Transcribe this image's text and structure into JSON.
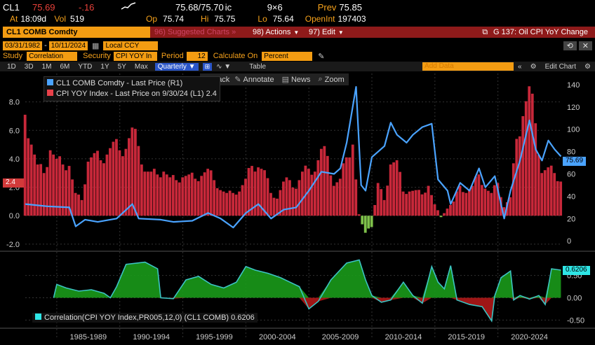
{
  "quote": {
    "ticker": "CL1",
    "last": "75.69",
    "change": "-.16",
    "bid_ask": "75.68/75.70",
    "bid_ask_suffix": "ic",
    "size": "9×6",
    "prev_label": "Prev",
    "prev": "75.85",
    "at_label": "At",
    "time": "18:09d",
    "vol_label": "Vol",
    "vol": "519",
    "op_label": "Op",
    "op": "75.74",
    "hi_label": "Hi",
    "hi": "75.75",
    "lo_label": "Lo",
    "lo": "75.64",
    "oi_label": "OpenInt",
    "oi": "197403"
  },
  "toolbar": {
    "security": "CL1 COMB Comdty",
    "suggested": "96) Suggested Charts »",
    "actions": "98) Actions",
    "edit": "97) Edit",
    "title": "G 137: Oil CPI YoY Change"
  },
  "params": {
    "start": "03/31/1982",
    "end": "10/11/2024",
    "currency": "Local CCY",
    "study_label": "Study",
    "study": "Correlation",
    "security_label": "Security",
    "security": "CPI YOY In",
    "period_label": "Period",
    "period": "12",
    "calc_label": "Calculate On",
    "calc": "Percent"
  },
  "ranges": [
    "1D",
    "3D",
    "1M",
    "6M",
    "YTD",
    "1Y",
    "5Y",
    "Max"
  ],
  "freq": "Quarterly",
  "tools": {
    "table": "Table",
    "track": "Track",
    "annotate": "Annotate",
    "news": "News",
    "zoom": "Zoom",
    "add_data": "Add Data",
    "edit_chart": "Edit Chart"
  },
  "legend": {
    "oil": "CL1 COMB Comdty - Last Price (R1)",
    "cpi": "CPI YOY Index - Last Price on 9/30/24 (L1) 2.4",
    "corr": "Correlation(CPI YOY Index,PR005,12,0) (CL1 COMB) 0.6206"
  },
  "badges": {
    "cpi": "2.4",
    "oil": "75.69",
    "corr": "0.6206"
  },
  "colors": {
    "cpi_bars": "#c8283a",
    "oil_line": "#4aa3ff",
    "corr_fill": "#1a9a1a",
    "corr_neg": "#b01818",
    "accent": "#f39c12"
  },
  "chart_data": [
    {
      "type": "bar+line",
      "x_range": [
        1982.25,
        2024.78
      ],
      "left_axis": {
        "series": "CPI YOY Index",
        "ylim": [
          -2.4,
          10.0
        ],
        "ticks": [
          "8.0",
          "6.0",
          "4.0",
          "2.0",
          "0.0",
          "-2.0"
        ]
      },
      "right_axis": {
        "series": "CL1 COMB Comdty",
        "ylim": [
          -8,
          150
        ],
        "ticks": [
          "140",
          "120",
          "100",
          "80",
          "60",
          "40",
          "20",
          "0"
        ]
      },
      "cpi_points": [
        [
          1982.25,
          7.1
        ],
        [
          1982.75,
          5.0
        ],
        [
          1983.25,
          3.6
        ],
        [
          1983.75,
          3.0
        ],
        [
          1984.25,
          4.6
        ],
        [
          1984.75,
          4.0
        ],
        [
          1985.25,
          3.6
        ],
        [
          1985.75,
          3.5
        ],
        [
          1986.25,
          1.6
        ],
        [
          1986.75,
          1.1
        ],
        [
          1987.25,
          3.8
        ],
        [
          1987.75,
          4.4
        ],
        [
          1988.25,
          3.9
        ],
        [
          1988.75,
          4.3
        ],
        [
          1989.25,
          5.2
        ],
        [
          1989.75,
          4.6
        ],
        [
          1990.25,
          4.7
        ],
        [
          1990.75,
          6.2
        ],
        [
          1991.25,
          4.9
        ],
        [
          1991.75,
          3.1
        ],
        [
          1992.25,
          3.1
        ],
        [
          1992.75,
          2.9
        ],
        [
          1993.25,
          3.1
        ],
        [
          1993.75,
          2.7
        ],
        [
          1994.25,
          2.5
        ],
        [
          1994.75,
          2.7
        ],
        [
          1995.25,
          2.9
        ],
        [
          1995.75,
          2.6
        ],
        [
          1996.25,
          2.8
        ],
        [
          1996.75,
          3.3
        ],
        [
          1997.25,
          2.5
        ],
        [
          1997.75,
          1.8
        ],
        [
          1998.25,
          1.6
        ],
        [
          1998.75,
          1.6
        ],
        [
          1999.25,
          1.7
        ],
        [
          1999.75,
          2.6
        ],
        [
          2000.25,
          3.5
        ],
        [
          2000.75,
          3.4
        ],
        [
          2001.25,
          3.2
        ],
        [
          2001.75,
          1.6
        ],
        [
          2002.25,
          1.2
        ],
        [
          2002.75,
          2.4
        ],
        [
          2003.25,
          2.5
        ],
        [
          2003.75,
          1.9
        ],
        [
          2004.25,
          3.1
        ],
        [
          2004.75,
          3.3
        ],
        [
          2005.25,
          3.1
        ],
        [
          2005.75,
          4.7
        ],
        [
          2006.25,
          4.2
        ],
        [
          2006.75,
          2.1
        ],
        [
          2007.25,
          2.6
        ],
        [
          2007.75,
          4.1
        ],
        [
          2008.25,
          5.0
        ],
        [
          2008.75,
          0.1
        ],
        [
          2009.25,
          -1.2
        ],
        [
          2009.75,
          -0.8
        ],
        [
          2010.25,
          2.3
        ],
        [
          2010.75,
          1.1
        ],
        [
          2011.25,
          3.6
        ],
        [
          2011.75,
          3.9
        ],
        [
          2012.25,
          1.7
        ],
        [
          2012.75,
          1.7
        ],
        [
          2013.25,
          1.8
        ],
        [
          2013.75,
          1.5
        ],
        [
          2014.25,
          2.1
        ],
        [
          2014.75,
          0.8
        ],
        [
          2015.25,
          -0.1
        ],
        [
          2015.75,
          0.5
        ],
        [
          2016.25,
          1.0
        ],
        [
          2016.75,
          2.1
        ],
        [
          2017.25,
          1.6
        ],
        [
          2017.75,
          2.1
        ],
        [
          2018.25,
          2.9
        ],
        [
          2018.75,
          1.9
        ],
        [
          2019.25,
          1.6
        ],
        [
          2019.75,
          2.3
        ],
        [
          2020.25,
          0.6
        ],
        [
          2020.75,
          1.3
        ],
        [
          2021.25,
          5.4
        ],
        [
          2021.75,
          7.0
        ],
        [
          2022.25,
          9.1
        ],
        [
          2022.75,
          6.5
        ],
        [
          2023.25,
          3.0
        ],
        [
          2023.75,
          3.4
        ],
        [
          2024.25,
          3.0
        ],
        [
          2024.75,
          2.4
        ]
      ],
      "oil_points": [
        [
          1982.25,
          33
        ],
        [
          1984.0,
          31
        ],
        [
          1985.75,
          30
        ],
        [
          1986.25,
          13
        ],
        [
          1987.0,
          19
        ],
        [
          1988.0,
          17
        ],
        [
          1989.5,
          20
        ],
        [
          1990.75,
          33
        ],
        [
          1991.25,
          20
        ],
        [
          1993.0,
          19
        ],
        [
          1994.0,
          17
        ],
        [
          1995.5,
          18
        ],
        [
          1996.75,
          25
        ],
        [
          1997.75,
          20
        ],
        [
          1998.75,
          12
        ],
        [
          1999.75,
          25
        ],
        [
          2000.75,
          33
        ],
        [
          2001.75,
          20
        ],
        [
          2002.75,
          28
        ],
        [
          2003.75,
          30
        ],
        [
          2004.75,
          45
        ],
        [
          2005.75,
          62
        ],
        [
          2006.75,
          60
        ],
        [
          2007.25,
          65
        ],
        [
          2007.75,
          88
        ],
        [
          2008.5,
          138
        ],
        [
          2008.9,
          50
        ],
        [
          2009.25,
          45
        ],
        [
          2009.75,
          75
        ],
        [
          2010.75,
          85
        ],
        [
          2011.25,
          106
        ],
        [
          2011.75,
          95
        ],
        [
          2012.5,
          88
        ],
        [
          2013.0,
          95
        ],
        [
          2013.75,
          102
        ],
        [
          2014.5,
          105
        ],
        [
          2015.0,
          55
        ],
        [
          2015.75,
          45
        ],
        [
          2016.0,
          33
        ],
        [
          2016.75,
          52
        ],
        [
          2017.5,
          45
        ],
        [
          2018.25,
          65
        ],
        [
          2018.75,
          48
        ],
        [
          2019.5,
          58
        ],
        [
          2020.25,
          20
        ],
        [
          2020.75,
          45
        ],
        [
          2021.5,
          72
        ],
        [
          2022.25,
          108
        ],
        [
          2022.75,
          82
        ],
        [
          2023.25,
          72
        ],
        [
          2023.75,
          90
        ],
        [
          2024.25,
          82
        ],
        [
          2024.75,
          75.69
        ]
      ]
    },
    {
      "type": "area",
      "series": "Correlation(CPI YOY Index,PR005,12,0)",
      "ylim": [
        -0.62,
        0.95
      ],
      "ticks": [
        "0.50",
        "0.00",
        "-0.50"
      ],
      "xticks": [
        "1985-1989",
        "1990-1994",
        "1995-1999",
        "2000-2004",
        "2005-2009",
        "2010-2014",
        "2015-2019",
        "2020-2024"
      ],
      "points": [
        [
          1984.5,
          0.0
        ],
        [
          1984.75,
          0.3
        ],
        [
          1985.5,
          0.22
        ],
        [
          1986.5,
          0.15
        ],
        [
          1987.5,
          0.18
        ],
        [
          1988.5,
          0.1
        ],
        [
          1989.0,
          0.0
        ],
        [
          1989.5,
          0.25
        ],
        [
          1990.25,
          0.75
        ],
        [
          1991.75,
          0.8
        ],
        [
          1992.75,
          0.65
        ],
        [
          1993.0,
          0.0
        ],
        [
          1994.0,
          -0.02
        ],
        [
          1995.0,
          0.4
        ],
        [
          1996.0,
          0.48
        ],
        [
          1997.0,
          0.3
        ],
        [
          1998.0,
          0.22
        ],
        [
          1999.0,
          0.35
        ],
        [
          1999.75,
          0.7
        ],
        [
          2000.5,
          0.62
        ],
        [
          2001.5,
          0.55
        ],
        [
          2002.5,
          0.45
        ],
        [
          2003.25,
          0.35
        ],
        [
          2004.0,
          0.25
        ],
        [
          2004.75,
          -0.25
        ],
        [
          2005.5,
          -0.08
        ],
        [
          2006.5,
          0.4
        ],
        [
          2007.75,
          0.78
        ],
        [
          2008.75,
          0.85
        ],
        [
          2009.25,
          0.4
        ],
        [
          2009.75,
          0.05
        ],
        [
          2010.5,
          -0.1
        ],
        [
          2011.25,
          -0.05
        ],
        [
          2012.25,
          0.35
        ],
        [
          2013.0,
          0.05
        ],
        [
          2013.75,
          -0.12
        ],
        [
          2014.5,
          0.7
        ],
        [
          2015.0,
          0.35
        ],
        [
          2015.5,
          0.2
        ],
        [
          2016.0,
          0.72
        ],
        [
          2016.5,
          -0.05
        ],
        [
          2017.5,
          -0.15
        ],
        [
          2018.5,
          -0.2
        ],
        [
          2019.25,
          -0.52
        ],
        [
          2019.5,
          0.05
        ],
        [
          2020.0,
          0.45
        ],
        [
          2020.75,
          0.6
        ],
        [
          2021.0,
          -0.05
        ],
        [
          2021.5,
          0.05
        ],
        [
          2022.25,
          -0.03
        ],
        [
          2023.0,
          0.05
        ],
        [
          2023.5,
          -0.15
        ],
        [
          2024.0,
          0.65
        ],
        [
          2024.75,
          0.62
        ]
      ]
    }
  ]
}
